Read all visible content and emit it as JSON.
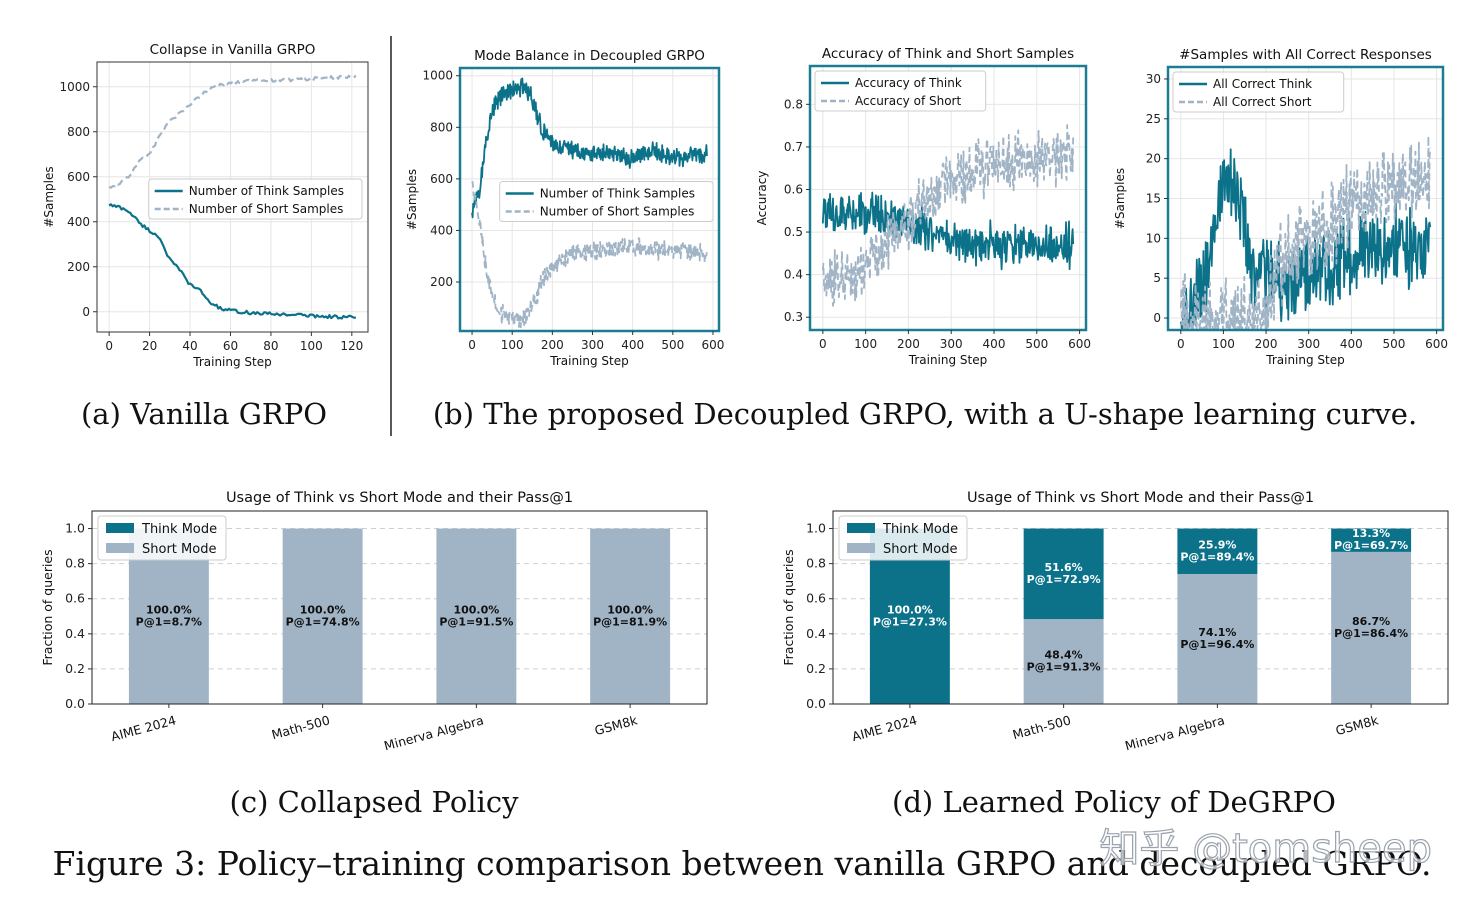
{
  "colors": {
    "think": "#0b728a",
    "short": "#a1b4c6",
    "grid": "#e6e6e6",
    "frame": "#1b7c94",
    "text": "#111111"
  },
  "captions": {
    "a": "(a) Vanilla GRPO",
    "b": "(b) The proposed Decoupled GRPO, with a U-shape learning curve.",
    "c": "(c) Collapsed Policy",
    "d": "(d) Learned Policy of DeGRPO",
    "figure": "Figure 3: Policy–training comparison between vanilla GRPO and decoupled GRPO.",
    "watermark": "知乎 @tomsheep"
  },
  "chart_data": [
    {
      "id": "collapse",
      "type": "line",
      "title": "Collapse in Vanilla GRPO",
      "xlabel": "Training Step",
      "ylabel": "#Samples",
      "xlim": [
        -6,
        128
      ],
      "ylim": [
        -90,
        1110
      ],
      "xticks": [
        0,
        20,
        40,
        60,
        80,
        100,
        120
      ],
      "yticks": [
        0,
        200,
        400,
        600,
        800,
        1000
      ],
      "legend": "center-right",
      "series": [
        {
          "name": "Number of Think Samples",
          "style": "solid",
          "color_key": "think",
          "x": [
            0,
            5,
            10,
            15,
            20,
            25,
            30,
            35,
            40,
            45,
            50,
            55,
            60,
            70,
            80,
            90,
            100,
            110,
            122
          ],
          "values": [
            475,
            465,
            445,
            395,
            360,
            330,
            230,
            185,
            120,
            95,
            40,
            15,
            5,
            -5,
            -10,
            -12,
            -18,
            -22,
            -25
          ]
        },
        {
          "name": "Number of Short Samples",
          "style": "dashed",
          "color_key": "short",
          "x": [
            0,
            5,
            10,
            15,
            20,
            25,
            30,
            35,
            40,
            45,
            50,
            55,
            60,
            70,
            80,
            90,
            100,
            110,
            122
          ],
          "values": [
            550,
            570,
            600,
            670,
            700,
            780,
            850,
            880,
            920,
            960,
            990,
            1010,
            1020,
            1025,
            1030,
            1030,
            1035,
            1040,
            1045
          ]
        }
      ]
    },
    {
      "id": "balance",
      "type": "line",
      "title": "Mode Balance in Decoupled GRPO",
      "xlabel": "Training Step",
      "ylabel": "#Samples",
      "xlim": [
        -30,
        615
      ],
      "ylim": [
        10,
        1030
      ],
      "xticks": [
        0,
        100,
        200,
        300,
        400,
        500,
        600
      ],
      "yticks": [
        200,
        400,
        600,
        800,
        1000
      ],
      "legend": "center-right",
      "series": [
        {
          "name": "Number of Think Samples",
          "style": "solid",
          "color_key": "think",
          "noise": 45,
          "x": [
            0,
            10,
            20,
            30,
            50,
            75,
            100,
            125,
            150,
            175,
            200,
            250,
            300,
            350,
            400,
            450,
            500,
            550,
            585
          ],
          "values": [
            480,
            520,
            560,
            700,
            870,
            930,
            950,
            960,
            910,
            790,
            740,
            710,
            700,
            690,
            680,
            700,
            690,
            690,
            700
          ]
        },
        {
          "name": "Number of Short Samples",
          "style": "dashed",
          "color_key": "short",
          "noise": 45,
          "x": [
            0,
            10,
            20,
            30,
            50,
            75,
            100,
            125,
            150,
            175,
            200,
            250,
            300,
            350,
            400,
            450,
            500,
            550,
            585
          ],
          "values": [
            560,
            520,
            440,
            300,
            140,
            80,
            60,
            55,
            100,
            200,
            270,
            310,
            320,
            330,
            340,
            320,
            330,
            320,
            310
          ]
        }
      ]
    },
    {
      "id": "accuracy",
      "type": "line",
      "title": "Accuracy of Think and Short Samples",
      "xlabel": "Training Step",
      "ylabel": "Accuracy",
      "xlim": [
        -30,
        615
      ],
      "ylim": [
        0.27,
        0.89
      ],
      "xticks": [
        0,
        100,
        200,
        300,
        400,
        500,
        600
      ],
      "yticks": [
        0.3,
        0.4,
        0.5,
        0.6,
        0.7,
        0.8
      ],
      "legend": "top-left",
      "series": [
        {
          "name": "Accuracy of Think",
          "style": "solid",
          "color_key": "think",
          "noise": 0.06,
          "x": [
            0,
            100,
            150,
            200,
            250,
            300,
            400,
            500,
            585
          ],
          "values": [
            0.53,
            0.55,
            0.53,
            0.52,
            0.5,
            0.48,
            0.47,
            0.47,
            0.47
          ]
        },
        {
          "name": "Accuracy of Short",
          "style": "dashed",
          "color_key": "short",
          "noise": 0.08,
          "x": [
            0,
            100,
            150,
            200,
            250,
            300,
            400,
            500,
            585
          ],
          "values": [
            0.37,
            0.42,
            0.47,
            0.53,
            0.58,
            0.62,
            0.66,
            0.67,
            0.68
          ]
        }
      ]
    },
    {
      "id": "allcorrect",
      "type": "line",
      "title": "#Samples with All Correct Responses",
      "xlabel": "Training Step",
      "ylabel": "#Samples",
      "xlim": [
        -30,
        615
      ],
      "ylim": [
        -1.5,
        31.5
      ],
      "xticks": [
        0,
        100,
        200,
        300,
        400,
        500,
        600
      ],
      "yticks": [
        0,
        5,
        10,
        15,
        20,
        25,
        30
      ],
      "legend": "top-left",
      "series": [
        {
          "name": "All Correct Think",
          "style": "solid",
          "color_key": "think",
          "noise": 6,
          "x": [
            0,
            20,
            40,
            60,
            80,
            100,
            120,
            150,
            170,
            200,
            250,
            300,
            400,
            500,
            585
          ],
          "values": [
            0,
            0,
            2,
            6,
            12,
            17,
            17,
            12,
            5,
            6,
            4,
            5,
            8,
            9,
            9
          ]
        },
        {
          "name": "All Correct Short",
          "style": "dashed",
          "color_key": "short",
          "noise": 6,
          "x": [
            0,
            50,
            100,
            150,
            190,
            220,
            250,
            300,
            400,
            500,
            585
          ],
          "values": [
            0,
            0,
            0,
            0,
            0,
            5,
            8,
            10,
            14,
            17,
            18
          ]
        }
      ]
    },
    {
      "id": "collapsed_policy",
      "type": "bar",
      "title": "Usage of Think vs Short Mode and their Pass@1",
      "ylabel": "Fraction of queries",
      "ylim": [
        0,
        1.1
      ],
      "yticks": [
        "0.0",
        "0.2",
        "0.4",
        "0.6",
        "0.8",
        "1.0"
      ],
      "categories": [
        "AIME 2024",
        "Math-500",
        "Minerva Algebra",
        "GSM8k"
      ],
      "legend": "top-left",
      "series": [
        {
          "name": "Short Mode",
          "color_key": "short",
          "values": [
            1.0,
            1.0,
            1.0,
            1.0
          ],
          "labels": [
            [
              "100.0%",
              "P@1=8.7%"
            ],
            [
              "100.0%",
              "P@1=74.8%"
            ],
            [
              "100.0%",
              "P@1=91.5%"
            ],
            [
              "100.0%",
              "P@1=81.9%"
            ]
          ]
        },
        {
          "name": "Think Mode",
          "color_key": "think",
          "values": [
            0,
            0,
            0,
            0
          ],
          "labels": [
            [],
            [],
            [],
            []
          ]
        }
      ]
    },
    {
      "id": "learned_policy",
      "type": "bar",
      "title": "Usage of Think vs Short Mode and their Pass@1",
      "ylabel": "Fraction of queries",
      "ylim": [
        0,
        1.1
      ],
      "yticks": [
        "0.0",
        "0.2",
        "0.4",
        "0.6",
        "0.8",
        "1.0"
      ],
      "categories": [
        "AIME 2024",
        "Math-500",
        "Minerva Algebra",
        "GSM8k"
      ],
      "legend": "top-left",
      "series": [
        {
          "name": "Short Mode",
          "color_key": "short",
          "values": [
            0,
            0.484,
            0.741,
            0.867
          ],
          "labels": [
            [],
            [
              "48.4%",
              "P@1=91.3%"
            ],
            [
              "74.1%",
              "P@1=96.4%"
            ],
            [
              "86.7%",
              "P@1=86.4%"
            ]
          ]
        },
        {
          "name": "Think Mode",
          "color_key": "think",
          "values": [
            1.0,
            0.516,
            0.259,
            0.133
          ],
          "labels": [
            [
              "100.0%",
              "P@1=27.3%"
            ],
            [
              "51.6%",
              "P@1=72.9%"
            ],
            [
              "25.9%",
              "P@1=89.4%"
            ],
            [
              "13.3%",
              "P@1=69.7%"
            ]
          ]
        }
      ]
    }
  ]
}
